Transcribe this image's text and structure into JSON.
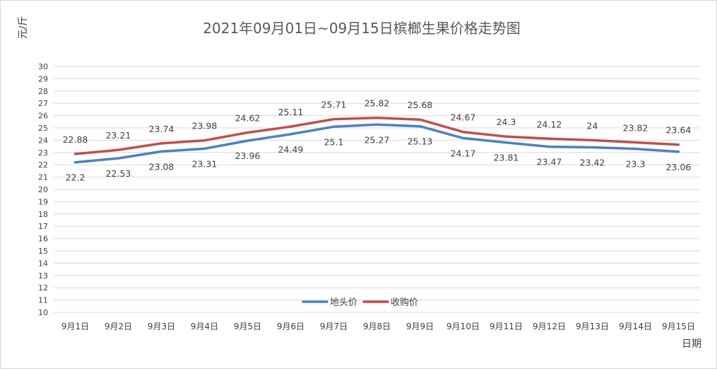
{
  "chart_data": {
    "type": "line",
    "title": "2021年09月01日~09月15日槟榔生果价格走势图",
    "ylabel": "元/斤",
    "xlabel": "日期",
    "ylim": [
      10,
      30
    ],
    "yticks": [
      10,
      11,
      12,
      13,
      14,
      15,
      16,
      17,
      18,
      19,
      20,
      21,
      22,
      23,
      24,
      25,
      26,
      27,
      28,
      29,
      30
    ],
    "categories": [
      "9月1日",
      "9月2日",
      "9月3日",
      "9月4日",
      "9月5日",
      "9月6日",
      "9月7日",
      "9月8日",
      "9月9日",
      "9月10日",
      "9月11日",
      "9月12日",
      "9月13日",
      "9月14日",
      "9月15日"
    ],
    "grid": true,
    "legend_position": "bottom-center",
    "series": [
      {
        "name": "地头价",
        "color": "#4f81bd",
        "values": [
          22.2,
          22.53,
          23.08,
          23.31,
          23.96,
          24.49,
          25.1,
          25.27,
          25.13,
          24.17,
          23.81,
          23.47,
          23.42,
          23.3,
          23.06
        ],
        "labels": [
          "22.2",
          "22.53",
          "23.08",
          "23.31",
          "23.96",
          "24.49",
          "25.1",
          "25.27",
          "25.13",
          "24.17",
          "23.81",
          "23.47",
          "23.42",
          "23.3",
          "23.06"
        ],
        "label_position": "below"
      },
      {
        "name": "收购价",
        "color": "#c0504d",
        "values": [
          22.88,
          23.21,
          23.74,
          23.98,
          24.62,
          25.11,
          25.71,
          25.82,
          25.68,
          24.67,
          24.3,
          24.12,
          24.0,
          23.82,
          23.64
        ],
        "labels": [
          "22.88",
          "23.21",
          "23.74",
          "23.98",
          "24.62",
          "25.11",
          "25.71",
          "25.82",
          "25.68",
          "24.67",
          "24.3",
          "24.12",
          "24",
          "23.82",
          "23.64"
        ],
        "label_position": "above"
      }
    ]
  }
}
